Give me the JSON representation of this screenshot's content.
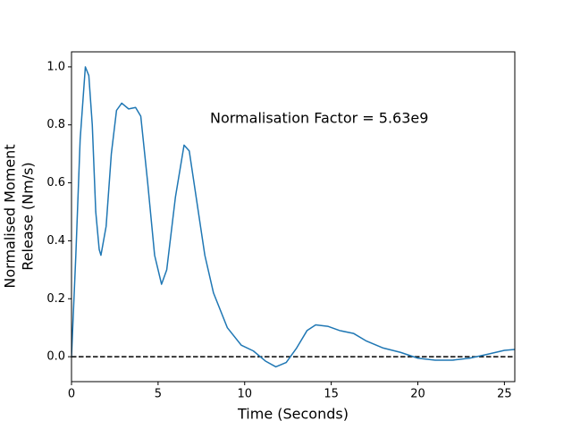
{
  "chart_data": {
    "type": "line",
    "xlabel": "Time (Seconds)",
    "ylabel": [
      "Normalised Moment",
      "Release (Nm/s)"
    ],
    "annotation": "Normalisation Factor = 5.63e9",
    "x": [
      0,
      0.25,
      0.5,
      0.8,
      1.0,
      1.2,
      1.4,
      1.6,
      1.7,
      2.0,
      2.3,
      2.6,
      2.9,
      3.3,
      3.7,
      4.0,
      4.4,
      4.8,
      5.2,
      5.5,
      6.0,
      6.5,
      6.8,
      7.2,
      7.7,
      8.2,
      9.0,
      9.8,
      10.5,
      11.2,
      11.8,
      12.4,
      13.0,
      13.6,
      14.1,
      14.8,
      15.5,
      16.3,
      17.0,
      18.0,
      19.0,
      20.0,
      21.0,
      22.0,
      23.0,
      24.0,
      25.0,
      25.6
    ],
    "series": [
      {
        "name": "moment release",
        "color": "#1f77b4",
        "values": [
          0,
          0.35,
          0.75,
          1.0,
          0.97,
          0.8,
          0.5,
          0.37,
          0.35,
          0.45,
          0.7,
          0.85,
          0.875,
          0.855,
          0.86,
          0.83,
          0.6,
          0.35,
          0.25,
          0.3,
          0.55,
          0.73,
          0.71,
          0.55,
          0.35,
          0.22,
          0.1,
          0.04,
          0.02,
          -0.015,
          -0.035,
          -0.02,
          0.03,
          0.09,
          0.11,
          0.105,
          0.09,
          0.08,
          0.055,
          0.03,
          0.015,
          -0.005,
          -0.012,
          -0.012,
          -0.005,
          0.008,
          0.022,
          0.025
        ]
      }
    ],
    "hline": 0,
    "xlim": [
      0,
      25.6
    ],
    "ylim": [
      -0.086,
      1.052
    ],
    "xticks": [
      0,
      5,
      10,
      15,
      20,
      25
    ],
    "yticks": [
      {
        "value": 0,
        "label": "0.0"
      },
      0.2,
      0.4,
      0.6,
      0.8,
      {
        "value": 1,
        "label": "1.0"
      }
    ]
  }
}
